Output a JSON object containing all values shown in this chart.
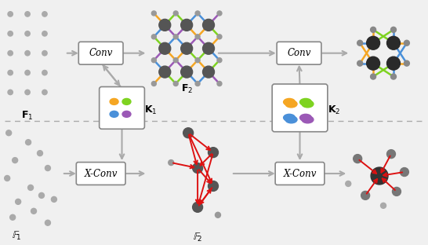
{
  "bg_color": "#f0f0f0",
  "orange": "#f5a623",
  "green": "#7ed321",
  "blue": "#4a90d9",
  "purple": "#9b59b6",
  "dark_node": "#555555",
  "mid_node": "#888888",
  "light_node": "#aaaaaa",
  "arrow_gray": "#999999",
  "red": "#dd1111",
  "white": "#ffffff",
  "F1_label": "$\\mathbf{F}_1$",
  "F2_label": "$\\mathbf{F}_2$",
  "F1b_label": "$\\mathbb{F}_1$",
  "F2b_label": "$\\mathbb{F}_2$",
  "K1_label": "$\\mathbf{K}_1$",
  "K2_label": "$\\mathbf{K}_2$",
  "conv_label": "Conv",
  "xconv_label": "X-Conv"
}
